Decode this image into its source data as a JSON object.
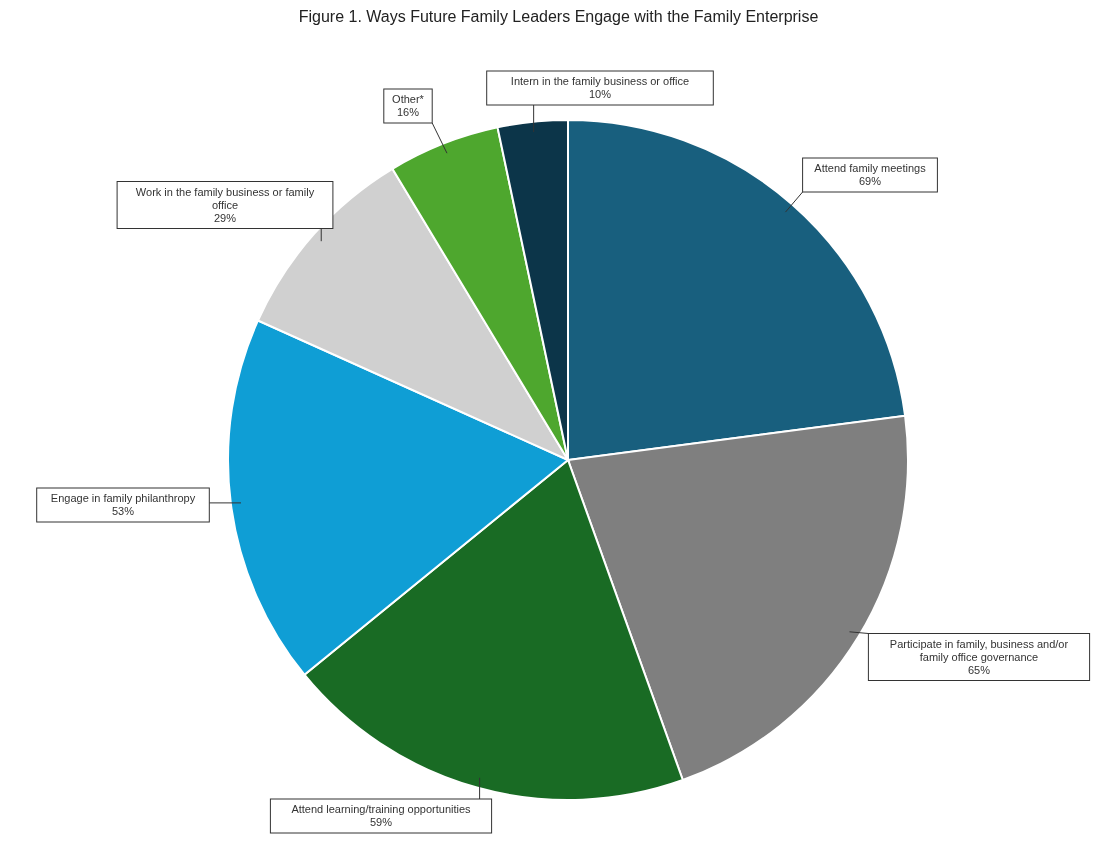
{
  "chart_data": {
    "type": "pie",
    "title": "Figure 1. Ways Future Family Leaders Engage with the Family Enterprise",
    "categories": [
      "Attend family meetings",
      "Participate in family, business and/or family office governance",
      "Attend learning/training opportunities",
      "Engage in family philanthropy",
      "Work in the family business or family office",
      "Other*",
      "Intern in the family business or office"
    ],
    "values": [
      69,
      65,
      59,
      53,
      29,
      16,
      10
    ],
    "colors": [
      "#185f7e",
      "#7f7f7f",
      "#196b24",
      "#0f9ed5",
      "#d0d0d0",
      "#4ea72e",
      "#0c3549"
    ],
    "value_labels": [
      "69%",
      "65%",
      "59%",
      "53%",
      "29%",
      "16%",
      "10%"
    ]
  }
}
